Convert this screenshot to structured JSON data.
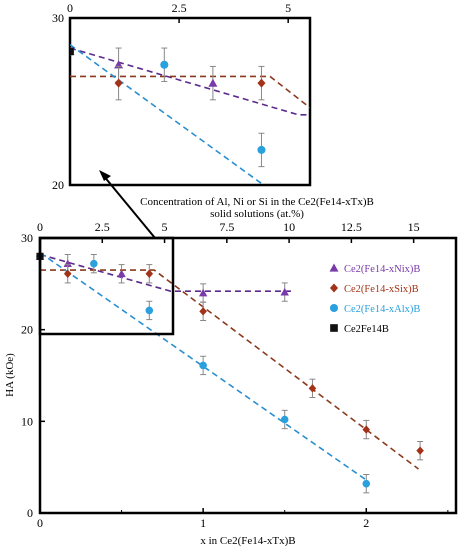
{
  "chart_data": [
    {
      "type": "scatter",
      "role": "main",
      "xlabel": "x in Ce2(Fe14-xTx)B",
      "ylabel": "HA (kOe)",
      "top_axis_label_line1": "Concentration of Al, Ni or Si in the Ce2(Fe14-xTx)B",
      "top_axis_label_line2": "solid solutions (at.%)",
      "xlim": [
        0,
        2.55
      ],
      "ylim": [
        0,
        30
      ],
      "top_xlim": [
        0,
        16.7
      ],
      "x_ticks": [
        "0",
        "1",
        "2"
      ],
      "y_ticks": [
        "0",
        "10",
        "20",
        "30"
      ],
      "top_x_ticks": [
        "0",
        "2.5",
        "5",
        "7.5",
        "10",
        "12.5",
        "15"
      ],
      "legend_position": "right",
      "series": [
        {
          "name": "Ce2(Fe14-xNix)B",
          "color": "#7a3aa8",
          "marker": "triangle",
          "x": [
            0,
            0.17,
            0.5,
            1.0,
            1.5
          ],
          "y": [
            28.0,
            27.2,
            26.1,
            24.0,
            24.1
          ],
          "err": [
            0,
            1.0,
            1.0,
            1.0,
            1.0
          ],
          "fit": {
            "x": [
              0,
              0.8,
              1.56
            ],
            "y": [
              28.2,
              24.2,
              24.2
            ],
            "color": "#5b2a8c"
          }
        },
        {
          "name": "Ce2(Fe14-xSix)B",
          "color": "#a33318",
          "marker": "diamond",
          "x": [
            0,
            0.17,
            0.67,
            1.0,
            1.67,
            2.0,
            2.33
          ],
          "y": [
            28.0,
            26.1,
            26.1,
            22.0,
            13.6,
            9.1,
            6.8
          ],
          "err": [
            0,
            1.0,
            1.0,
            1.0,
            1.0,
            1.0,
            1.0
          ],
          "fit": {
            "x": [
              0,
              0.7,
              2.32
            ],
            "y": [
              26.5,
              26.5,
              4.8
            ],
            "color": "#8b3a1e"
          }
        },
        {
          "name": "Ce2(Fe14-xAlx)B",
          "color": "#2aa0dc",
          "marker": "circle",
          "x": [
            0,
            0.33,
            0.67,
            1.0,
            1.5,
            2.0
          ],
          "y": [
            28.0,
            27.2,
            22.1,
            16.1,
            10.2,
            3.2
          ],
          "err": [
            0,
            1.0,
            1.0,
            1.0,
            1.0,
            1.0
          ],
          "fit": {
            "x": [
              0,
              2.0
            ],
            "y": [
              28.4,
              3.6
            ],
            "color": "#2a8fcf"
          }
        },
        {
          "name": "Ce2Fe14B",
          "color": "#111111",
          "marker": "square",
          "x": [
            0
          ],
          "y": [
            28.0
          ],
          "err": [
            0
          ]
        }
      ]
    },
    {
      "type": "scatter",
      "role": "inset-zoom",
      "xlim": [
        0,
        5.5
      ],
      "ylim": [
        20,
        30
      ],
      "top_x_ticks": [
        "0",
        "2.5",
        "5"
      ],
      "y_ticks": [
        "20",
        "30"
      ],
      "series_ref": "main",
      "note_arrow": "inset enlarges the boxed region of the main plot"
    }
  ],
  "colors": {
    "ni": "#7a3aa8",
    "si": "#a33318",
    "al": "#2aa0dc",
    "base": "#111111"
  }
}
